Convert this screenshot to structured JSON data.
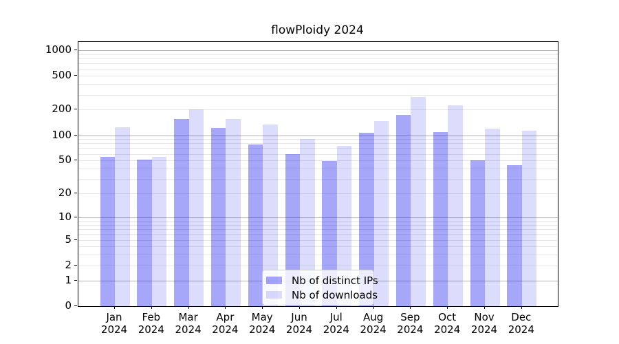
{
  "title": "flowPloidy 2024",
  "chart_data": {
    "type": "bar",
    "title": "flowPloidy 2024",
    "categories": [
      "Jan 2024",
      "Feb 2024",
      "Mar 2024",
      "Apr 2024",
      "May 2024",
      "Jun 2024",
      "Jul 2024",
      "Aug 2024",
      "Sep 2024",
      "Oct 2024",
      "Nov 2024",
      "Dec 2024"
    ],
    "series": [
      {
        "name": "Nb of distinct IPs",
        "color": "rgba(10,10,240,0.36)",
        "values": [
          55,
          51,
          154,
          122,
          77,
          60,
          49,
          107,
          173,
          108,
          50,
          44
        ]
      },
      {
        "name": "Nb of downloads",
        "color": "rgba(10,10,240,0.14)",
        "values": [
          125,
          55,
          200,
          155,
          134,
          90,
          75,
          148,
          280,
          225,
          120,
          112
        ]
      }
    ],
    "y_axis": {
      "scale": "log10(1+x)",
      "ticks": [
        0,
        1,
        2,
        5,
        10,
        20,
        50,
        100,
        200,
        500,
        1000
      ],
      "major_grid_values": [
        1,
        10,
        100,
        1000
      ],
      "ylim": [
        0,
        1260
      ],
      "grid": true
    },
    "legend": {
      "position": "inside bottom-center",
      "entries": [
        "Nb of distinct IPs",
        "Nb of downloads"
      ]
    }
  },
  "colors": {
    "bar_distinct_ips": "rgba(10,10,240,0.36)",
    "bar_downloads": "rgba(10,10,240,0.14)",
    "grid_minor": "#e7e7e7",
    "grid_major": "#b0b0b0",
    "axis": "#000000",
    "background": "#ffffff"
  }
}
